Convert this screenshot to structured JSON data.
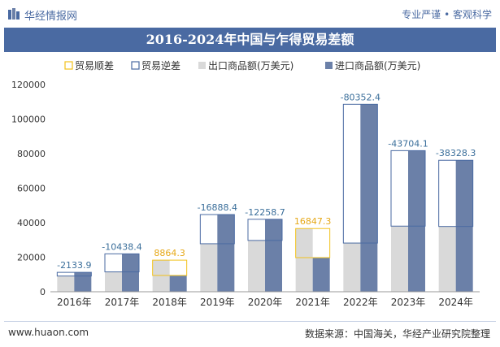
{
  "header": {
    "brand": "华经情报网",
    "slogan": "专业严谨 • 客观科学"
  },
  "footer": {
    "website": "www.huaon.com",
    "source": "数据来源：中国海关，华经产业研究院整理"
  },
  "colors": {
    "title_band": "#4a6aa2",
    "export": "#d9d9d9",
    "import": "#6b80a8",
    "surplus": "#f2c21c",
    "deficit": "#4a6aa2",
    "deficit_label": "#3a6e9a",
    "surplus_label": "#e6a817"
  },
  "chart_data": {
    "type": "bar",
    "title": "2016-2024年中国与乍得贸易差额",
    "categories": [
      "2016年",
      "2017年",
      "2018年",
      "2019年",
      "2020年",
      "2021年",
      "2022年",
      "2023年",
      "2024年"
    ],
    "series": [
      {
        "name": "出口商品额(万美元)",
        "values": [
          9100,
          11500,
          18300,
          27800,
          29700,
          36600,
          28200,
          38000,
          37800
        ]
      },
      {
        "name": "进口商品额(万美元)",
        "values": [
          11234,
          21938,
          9436,
          44688,
          41958,
          19753,
          108552,
          81704,
          76128
        ]
      }
    ],
    "balance": {
      "values": [
        -2133.9,
        -10438.4,
        8864.3,
        -16888.4,
        -12258.7,
        16847.3,
        -80352.4,
        -43704.1,
        -38328.3
      ],
      "labels": [
        "-2133.9",
        "-10438.4",
        "8864.3",
        "-16888.4",
        "-12258.7",
        "16847.3",
        "-80352.4",
        "-43704.1",
        "-38328.3"
      ]
    },
    "legend": [
      "贸易顺差",
      "贸易逆差",
      "出口商品额(万美元)",
      "进口商品额(万美元)"
    ],
    "legend_position": "top",
    "ylim": [
      0,
      120000
    ],
    "yticks": [
      "0",
      "20000",
      "40000",
      "60000",
      "80000",
      "100000",
      "120000"
    ],
    "grid": false
  }
}
